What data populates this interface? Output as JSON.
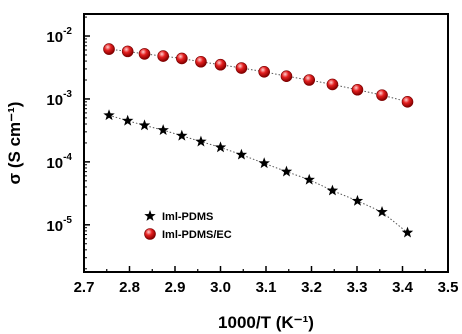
{
  "chart_data": {
    "type": "scatter",
    "title": "",
    "xlabel": "1000/T (K⁻¹)",
    "ylabel": "σ (S cm⁻¹)",
    "xlim": [
      2.7,
      3.5
    ],
    "ylim_log10": [
      -5.75,
      -1.65
    ],
    "y_scale": "log",
    "grid": false,
    "legend_position": "bottom-left",
    "x_ticks": [
      "2.7",
      "2.8",
      "2.9",
      "3.0",
      "3.1",
      "3.2",
      "3.3",
      "3.4",
      "3.5"
    ],
    "x_tick_values": [
      2.7,
      2.8,
      2.9,
      3.0,
      3.1,
      3.2,
      3.3,
      3.4,
      3.5
    ],
    "y_tick_exponents": [
      -5,
      -4,
      -3,
      -2
    ],
    "series": [
      {
        "name": "Iml-PDMS",
        "marker": "star",
        "color": "#000000",
        "x": [
          2.755,
          2.796,
          2.833,
          2.874,
          2.915,
          2.957,
          3.0,
          3.046,
          3.096,
          3.145,
          3.195,
          3.246,
          3.301,
          3.355,
          3.411
        ],
        "y": [
          0.00055,
          0.00045,
          0.00038,
          0.00032,
          0.00026,
          0.00021,
          0.00017,
          0.00013,
          9.5e-05,
          7e-05,
          5.2e-05,
          3.5e-05,
          2.4e-05,
          1.6e-05,
          7.5e-06
        ]
      },
      {
        "name": "Iml-PDMS/EC",
        "marker": "circle",
        "color": "#e01818",
        "x": [
          2.755,
          2.796,
          2.833,
          2.874,
          2.915,
          2.957,
          3.0,
          3.046,
          3.096,
          3.145,
          3.195,
          3.246,
          3.301,
          3.355,
          3.411
        ],
        "y": [
          0.0062,
          0.0057,
          0.0052,
          0.0048,
          0.0044,
          0.0039,
          0.0035,
          0.0031,
          0.0027,
          0.0023,
          0.002,
          0.0017,
          0.0014,
          0.00115,
          0.0009
        ]
      }
    ]
  }
}
